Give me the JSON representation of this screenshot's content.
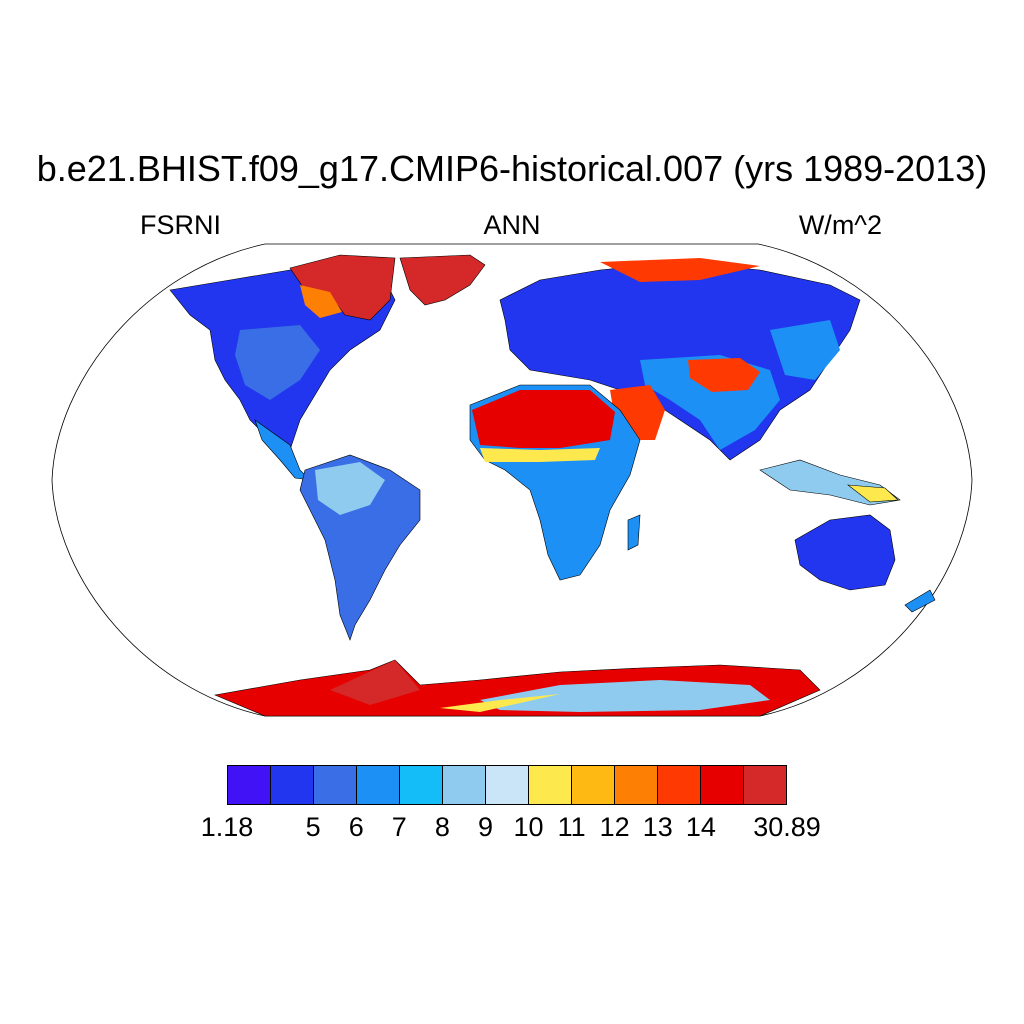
{
  "title": "b.e21.BHIST.f09_g17.CMIP6-historical.007 (yrs 1989-2013)",
  "left_label": "FSRNI",
  "center_label": "ANN",
  "right_label": "W/m^2",
  "colorbar": {
    "colors": [
      "#4112f5",
      "#2236ef",
      "#3a6ee6",
      "#1c90f5",
      "#14bdf7",
      "#8ecbef",
      "#c9e5f7",
      "#fde94e",
      "#feba12",
      "#fd8005",
      "#fe3a02",
      "#e60000",
      "#d52828"
    ],
    "labels": [
      "1.18",
      "5",
      "6",
      "7",
      "8",
      "9",
      "10",
      "11",
      "12",
      "13",
      "14",
      "30.89"
    ]
  },
  "map": {
    "projection": "Robinson",
    "land_default_color": "#3a6ee6",
    "ocean_color": "#ffffff"
  }
}
